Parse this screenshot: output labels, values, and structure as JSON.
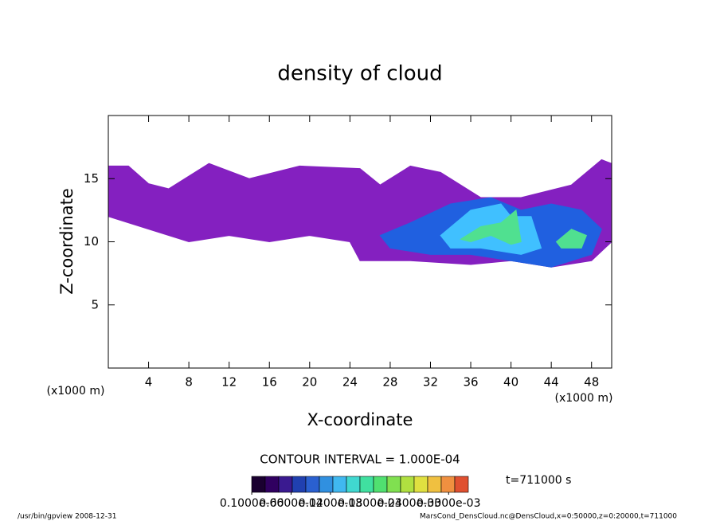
{
  "chart_data": {
    "type": "contour",
    "title": "density of cloud",
    "x_label": "X-coordinate",
    "y_label": "Z-coordinate",
    "x_unit": "(x1000 m)",
    "xlim": [
      0,
      50
    ],
    "xticks": [
      4,
      8,
      12,
      16,
      20,
      24,
      28,
      32,
      36,
      40,
      44,
      48
    ],
    "ylim": [
      0,
      20
    ],
    "yticks": [
      5,
      10,
      15
    ],
    "contour_interval": "CONTOUR INTERVAL = 1.000E-04",
    "time_label": "t=711000 s",
    "clim": [
      0,
      0.00033
    ],
    "colorbar_ticks": [
      {
        "value": 1e-07,
        "label": "0.1000e-06"
      },
      {
        "value": 6e-05,
        "label": "0.6000e-04"
      },
      {
        "value": 0.00012,
        "label": "0.1200e-03"
      },
      {
        "value": 0.00018,
        "label": "0.1800e-03"
      },
      {
        "value": 0.00024,
        "label": "0.2400e-03"
      },
      {
        "value": 0.0003,
        "label": "0.3000e-03"
      }
    ],
    "colorbar_colors": [
      "#1a0030",
      "#300060",
      "#3a1a90",
      "#2040b0",
      "#2a60d0",
      "#3090e0",
      "#40b8f0",
      "#40d8d0",
      "#40e0a0",
      "#50e070",
      "#80e050",
      "#b0e040",
      "#e0e040",
      "#f0c040",
      "#f09040",
      "#e05030"
    ],
    "regions": [
      {
        "color": "#8420c0",
        "x": [
          0,
          2,
          4,
          6,
          10,
          14,
          19,
          25,
          27,
          30,
          33,
          37,
          41,
          46,
          49,
          50,
          50,
          48,
          44,
          40,
          36,
          30,
          25,
          24,
          20,
          16,
          12,
          8,
          4,
          0
        ],
        "z": [
          16,
          16,
          14.6,
          14.2,
          16.2,
          15,
          16,
          15.8,
          14.5,
          16,
          15.5,
          13.5,
          13.5,
          14.5,
          16.5,
          16.2,
          10,
          8.5,
          8,
          8.5,
          8.2,
          8.5,
          8.5,
          10,
          10.5,
          10,
          10.5,
          10,
          11,
          12
        ]
      },
      {
        "color": "#2060e0",
        "x": [
          27,
          30,
          34,
          38,
          41,
          44,
          47,
          49,
          48,
          44,
          40,
          36,
          32,
          28
        ],
        "z": [
          10.5,
          11.5,
          13,
          13.5,
          12.5,
          13,
          12.5,
          11,
          9,
          8,
          8.5,
          9,
          9,
          9.5
        ]
      },
      {
        "color": "#40c0ff",
        "x": [
          33,
          36,
          39,
          40,
          42,
          43,
          41,
          37,
          34
        ],
        "z": [
          10.5,
          12.5,
          13,
          12,
          12,
          9.5,
          9,
          9.5,
          9.5
        ]
      },
      {
        "color": "#50e090",
        "x": [
          35,
          37,
          39,
          40.5,
          41,
          40,
          38,
          36
        ],
        "z": [
          10.2,
          11.2,
          11.5,
          12.5,
          10,
          9.8,
          10.5,
          10
        ]
      },
      {
        "color": "#50e090",
        "x": [
          44.5,
          46,
          47.5,
          47,
          45
        ],
        "z": [
          10,
          11,
          10.5,
          9.5,
          9.5
        ]
      }
    ],
    "footer_left": "/usr/bin/gpview   2008-12-31",
    "footer_right": "MarsCond_DensCloud.nc@DensCloud,x=0:50000,z=0:20000,t=711000"
  }
}
